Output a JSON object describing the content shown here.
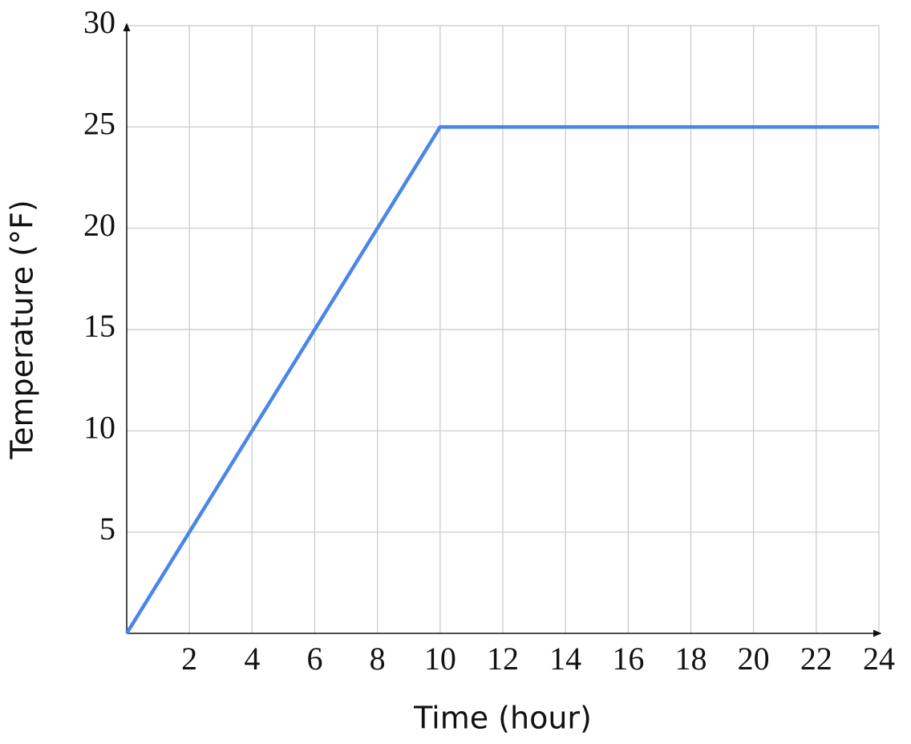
{
  "chart_data": {
    "type": "line",
    "x_label": "Time (hour)",
    "y_label": "Temperature (°F)",
    "series": [
      {
        "x": [
          0,
          10,
          24
        ],
        "values": [
          0,
          25,
          25
        ],
        "color": "#4a86e8"
      }
    ],
    "xlim": [
      0,
      24
    ],
    "xticks": [
      2,
      4,
      6,
      8,
      10,
      12,
      14,
      16,
      18,
      20,
      22,
      24
    ],
    "ylim": [
      0,
      30
    ],
    "yticks": [
      5,
      10,
      15,
      20,
      25,
      30
    ],
    "grid": true
  }
}
